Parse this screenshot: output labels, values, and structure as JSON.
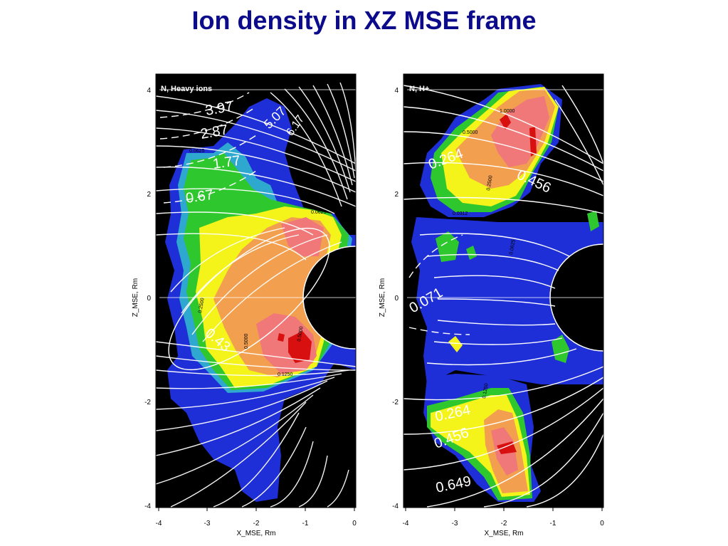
{
  "slide": {
    "title": "Ion density  in XZ MSE frame"
  },
  "chart_data": [
    {
      "type": "heatmap",
      "title": "N, Heavy ions",
      "xlabel": "X_MSE, Rm",
      "ylabel": "Z_MSE, Rm",
      "xlim": [
        -4,
        0
      ],
      "ylim": [
        -4,
        4
      ],
      "x_ticks": [
        "-4",
        "-3",
        "-2",
        "-1",
        "0"
      ],
      "y_ticks": [
        "4",
        "2",
        "0",
        "-2",
        "-4"
      ],
      "contour_labels": [
        "3.97",
        "2.87",
        "1.77",
        "0.67",
        "0.43",
        "5.07",
        "6.17"
      ],
      "small_labels": [
        "0.0625",
        "0.2500",
        "0.5000",
        "0.0625",
        "0.5000",
        "0.1250"
      ]
    },
    {
      "type": "heatmap",
      "title": "N, H+",
      "xlabel": "X_MSE, Rm",
      "ylabel": "Z_MSE, Rm",
      "xlim": [
        -4,
        0
      ],
      "ylim": [
        -4,
        4
      ],
      "x_ticks": [
        "-4",
        "-3",
        "-2",
        "-1",
        "0"
      ],
      "y_ticks": [
        "4",
        "2",
        "0",
        "-2",
        "-4"
      ],
      "contour_labels": [
        "0.264",
        "0.456",
        "0.071",
        "0.264",
        "0.456",
        "0.649"
      ],
      "small_labels": [
        "0.5000",
        "1.0000",
        "0.2500",
        "0.0312",
        "0.0625",
        "0.1250"
      ]
    }
  ],
  "colors": {
    "background": "#000000",
    "blue": "#1f2fd8",
    "cyan": "#2fa8d0",
    "green": "#2ec82e",
    "yellow": "#f4f41a",
    "orange": "#f2a050",
    "pink": "#f07878",
    "red": "#d81010",
    "title": "#0b0b8c"
  }
}
